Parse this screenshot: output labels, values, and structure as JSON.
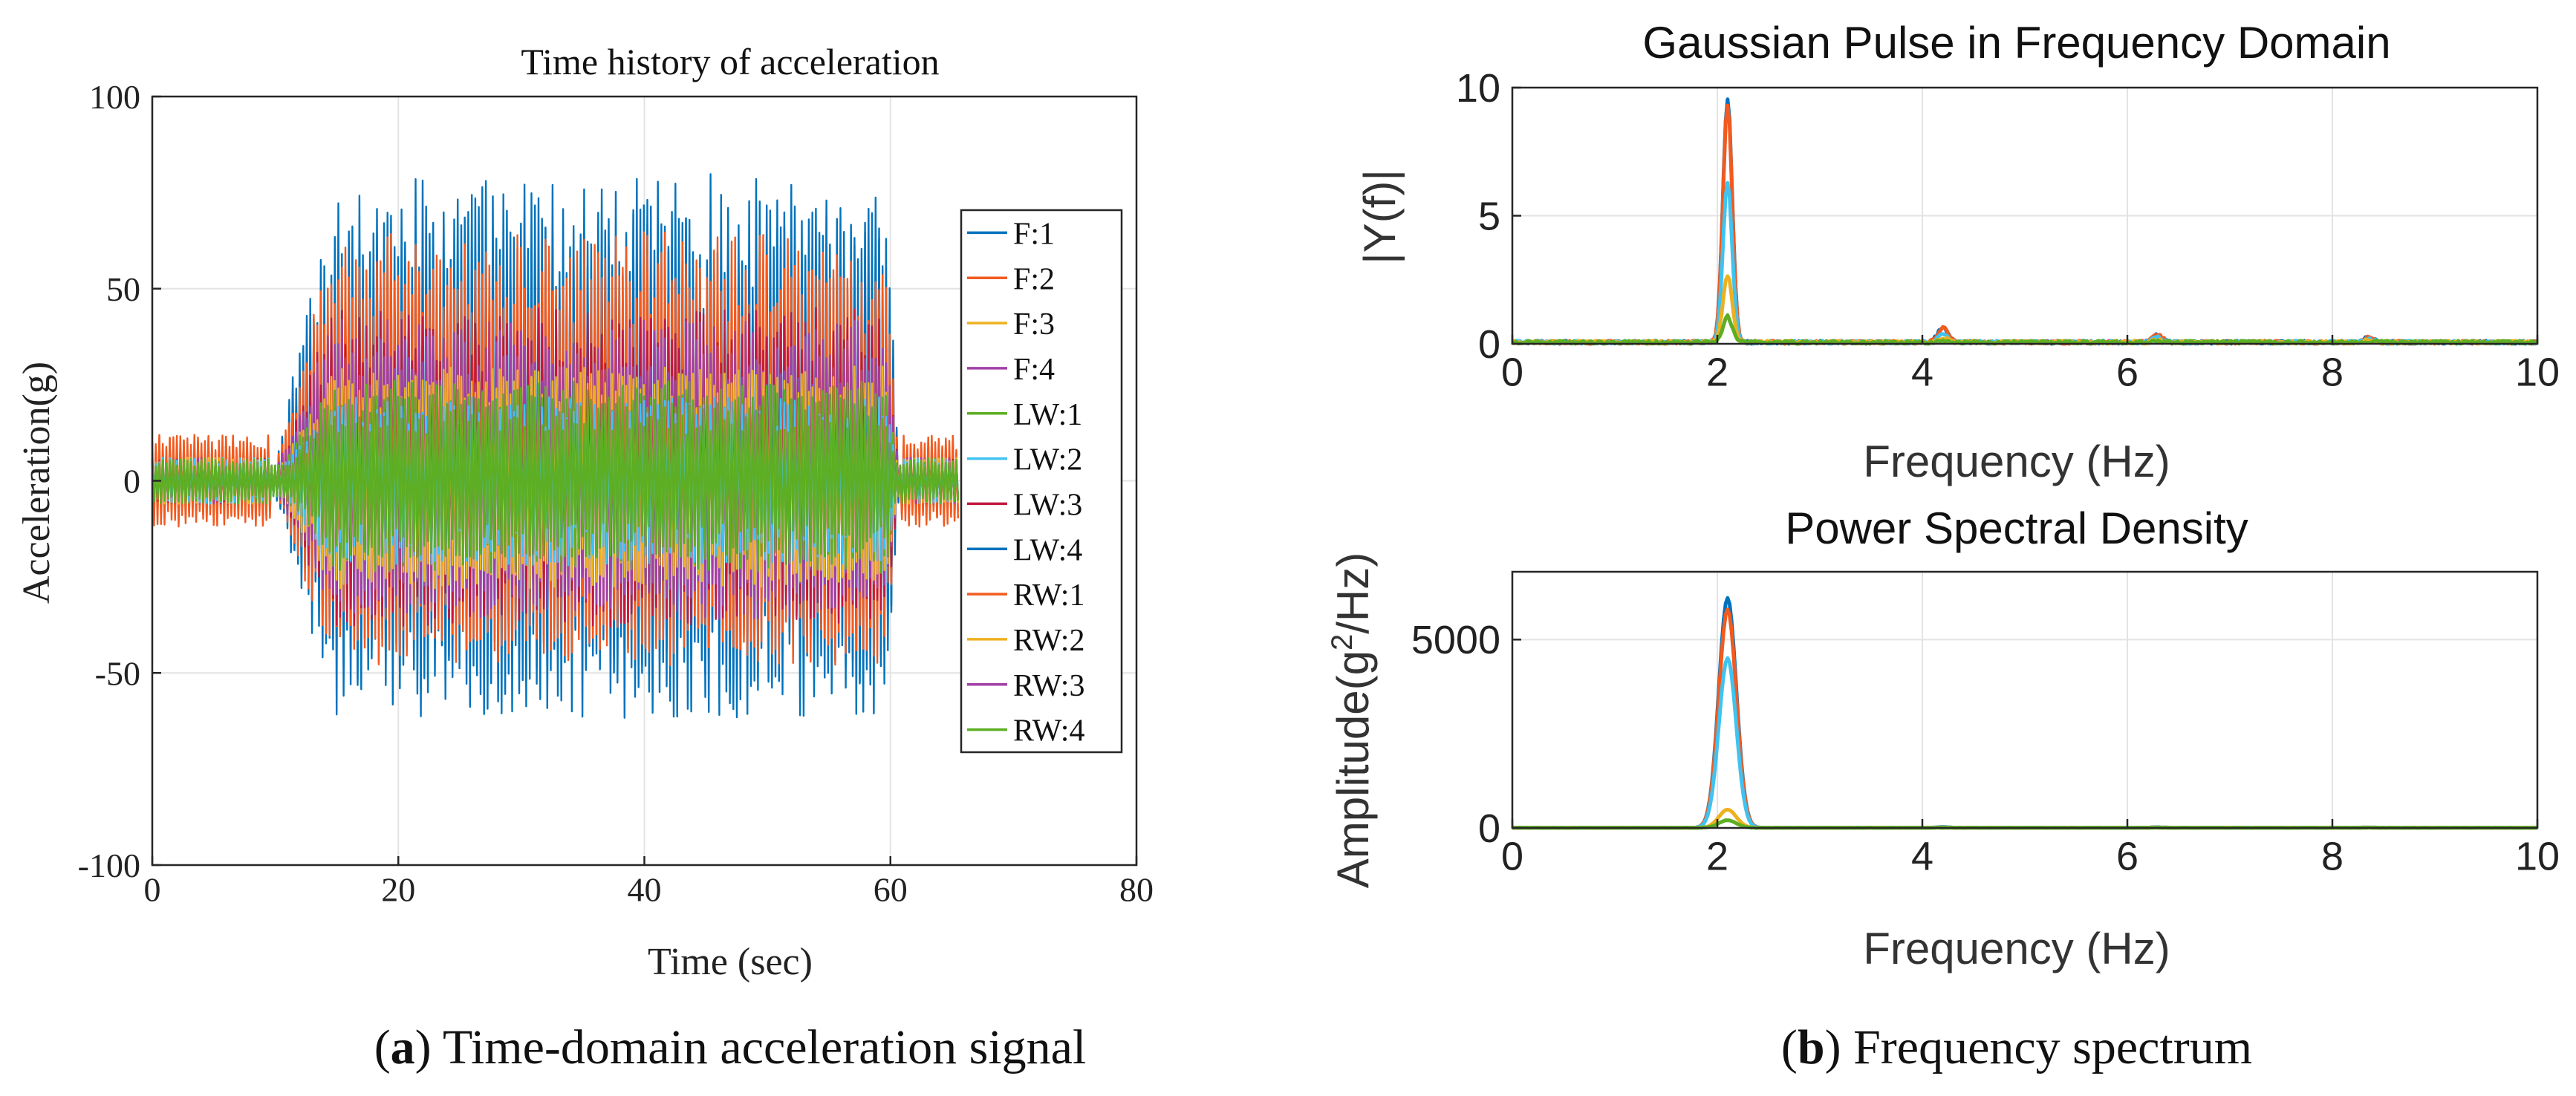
{
  "colors": {
    "blue": "#0072BD",
    "orange": "#F25A1F",
    "yellow": "#EDB120",
    "purple": "#A23FA6",
    "green": "#5DAE23",
    "cyan": "#3FC3F0",
    "crimson": "#C2183F",
    "grid": "#E3E3E3",
    "axis": "#262626"
  },
  "chart_data": [
    {
      "id": "time-history",
      "type": "line",
      "title": "Time history of acceleration",
      "xlabel": "Time (sec)",
      "ylabel": "Acceleration(g)",
      "xlim": [
        0,
        80
      ],
      "ylim": [
        -100,
        100
      ],
      "xticks": [
        0,
        20,
        40,
        60,
        80
      ],
      "yticks": [
        -100,
        -50,
        0,
        50,
        100
      ],
      "grid": true,
      "legend_position": "right",
      "signal_start_sec": 0,
      "signal_end_sec": 65.5,
      "walking_start_sec": 10,
      "walking_end_sec": 60,
      "series": [
        {
          "name": "F:1",
          "color": "blue",
          "peak_pos_g": 80,
          "peak_neg_g": -62
        },
        {
          "name": "F:2",
          "color": "orange",
          "peak_pos_g": 65,
          "peak_neg_g": -48
        },
        {
          "name": "F:3",
          "color": "yellow",
          "peak_pos_g": 30,
          "peak_neg_g": -28
        },
        {
          "name": "F:4",
          "color": "purple",
          "peak_pos_g": 32,
          "peak_neg_g": -30
        },
        {
          "name": "LW:1",
          "color": "green",
          "peak_pos_g": 26,
          "peak_neg_g": -24
        },
        {
          "name": "LW:2",
          "color": "cyan",
          "peak_pos_g": 22,
          "peak_neg_g": -22
        },
        {
          "name": "LW:3",
          "color": "crimson",
          "peak_pos_g": 45,
          "peak_neg_g": -38
        },
        {
          "name": "LW:4",
          "color": "blue",
          "peak_pos_g": 72,
          "peak_neg_g": -55
        },
        {
          "name": "RW:1",
          "color": "orange",
          "peak_pos_g": 55,
          "peak_neg_g": -45
        },
        {
          "name": "RW:2",
          "color": "yellow",
          "peak_pos_g": 28,
          "peak_neg_g": -26
        },
        {
          "name": "RW:3",
          "color": "purple",
          "peak_pos_g": 42,
          "peak_neg_g": -36
        },
        {
          "name": "RW:4",
          "color": "green",
          "peak_pos_g": 22,
          "peak_neg_g": -20
        }
      ]
    },
    {
      "id": "fft",
      "type": "line",
      "title": "Gaussian Pulse in Frequency Domain",
      "xlabel": "Frequency (Hz)",
      "ylabel": "|Y(f)|",
      "xlim": [
        0,
        10
      ],
      "ylim": [
        0,
        10
      ],
      "xticks": [
        0,
        2,
        4,
        6,
        8,
        10
      ],
      "yticks": [
        0,
        5,
        10
      ],
      "grid": true,
      "dominant_frequency_hz": 2.1,
      "series": [
        {
          "name": "F:1",
          "color": "blue",
          "peak": 9.5
        },
        {
          "name": "F:2",
          "color": "orange",
          "peak": 9.3
        },
        {
          "name": "LW:2",
          "color": "cyan",
          "peak": 6.2
        },
        {
          "name": "F:3",
          "color": "yellow",
          "peak": 2.6
        },
        {
          "name": "LW:1",
          "color": "green",
          "peak": 1.0
        }
      ]
    },
    {
      "id": "psd",
      "type": "line",
      "title": "Power Spectral Density",
      "xlabel": "Frequency (Hz)",
      "ylabel": "Amplitude(g",
      "ylabel_sup": "2",
      "ylabel_tail": "/Hz)",
      "xlim": [
        0,
        10
      ],
      "ylim": [
        0,
        6800
      ],
      "xticks": [
        0,
        2,
        4,
        6,
        8,
        10
      ],
      "yticks": [
        0,
        5000
      ],
      "grid": true,
      "dominant_frequency_hz": 2.1,
      "series": [
        {
          "name": "F:1",
          "color": "blue",
          "peak": 6100
        },
        {
          "name": "F:2",
          "color": "orange",
          "peak": 5800
        },
        {
          "name": "LW:2",
          "color": "cyan",
          "peak": 4500
        },
        {
          "name": "F:3",
          "color": "yellow",
          "peak": 480
        },
        {
          "name": "LW:1",
          "color": "green",
          "peak": 200
        }
      ]
    }
  ],
  "captions": {
    "a_letter": "a",
    "a_text": "Time-domain acceleration signal",
    "b_letter": "b",
    "b_text": "Frequency spectrum"
  }
}
